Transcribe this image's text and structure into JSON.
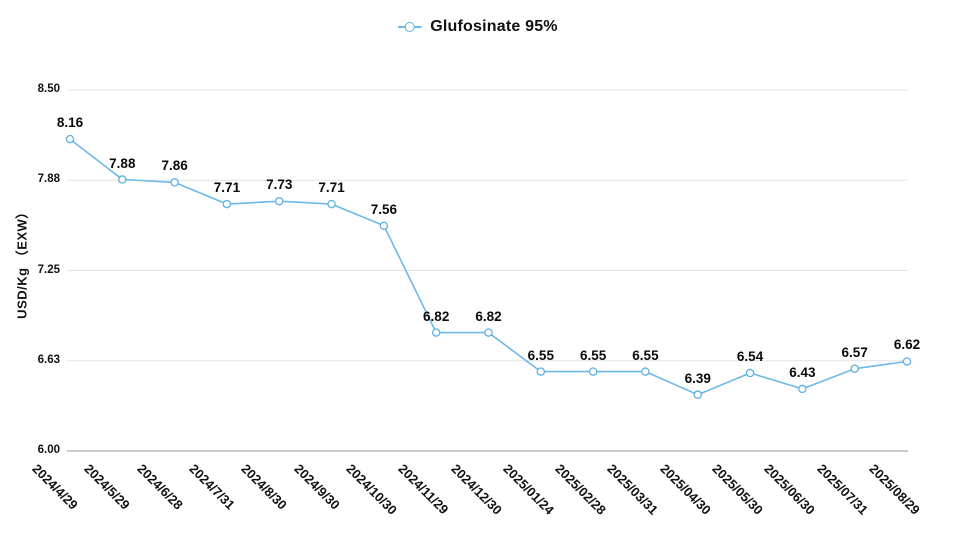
{
  "legend": {
    "label": "Glufosinate 95%"
  },
  "y_axis_title": "USD/Kg （EXW）",
  "chart_data": {
    "type": "line",
    "title": "Glufosinate 95%",
    "series_name": "Glufosinate 95%",
    "xlabel": "",
    "ylabel": "USD/Kg （EXW）",
    "categories": [
      "2024/4/29",
      "2024/5/29",
      "2024/6/28",
      "2024/7/31",
      "2024/8/30",
      "2024/9/30",
      "2024/10/30",
      "2024/11/29",
      "2024/12/30",
      "2025/01/24",
      "2025/02/28",
      "2025/03/31",
      "2025/04/30",
      "2025/05/30",
      "2025/06/30",
      "2025/07/31",
      "2025/08/29"
    ],
    "values": [
      8.16,
      7.88,
      7.86,
      7.71,
      7.73,
      7.71,
      7.56,
      6.82,
      6.82,
      6.55,
      6.55,
      6.55,
      6.39,
      6.54,
      6.43,
      6.57,
      6.62
    ],
    "ylim": [
      6.0,
      8.5
    ],
    "yticks": [
      {
        "label": "8.50",
        "value": 8.5
      },
      {
        "label": "7.88",
        "value": 7.875
      },
      {
        "label": "7.25",
        "value": 7.25
      },
      {
        "label": "6.63",
        "value": 6.625
      },
      {
        "label": "6.00",
        "value": 6.0
      }
    ],
    "grid": true,
    "legend_position": "top-center",
    "point_labels_visible": true,
    "colors": {
      "line": "#6db9e8",
      "marker_stroke": "#5fb0e2",
      "marker_fill": "#ffffff",
      "grid": "#e4e4e4",
      "axis": "#999999",
      "text": "#111111"
    }
  }
}
